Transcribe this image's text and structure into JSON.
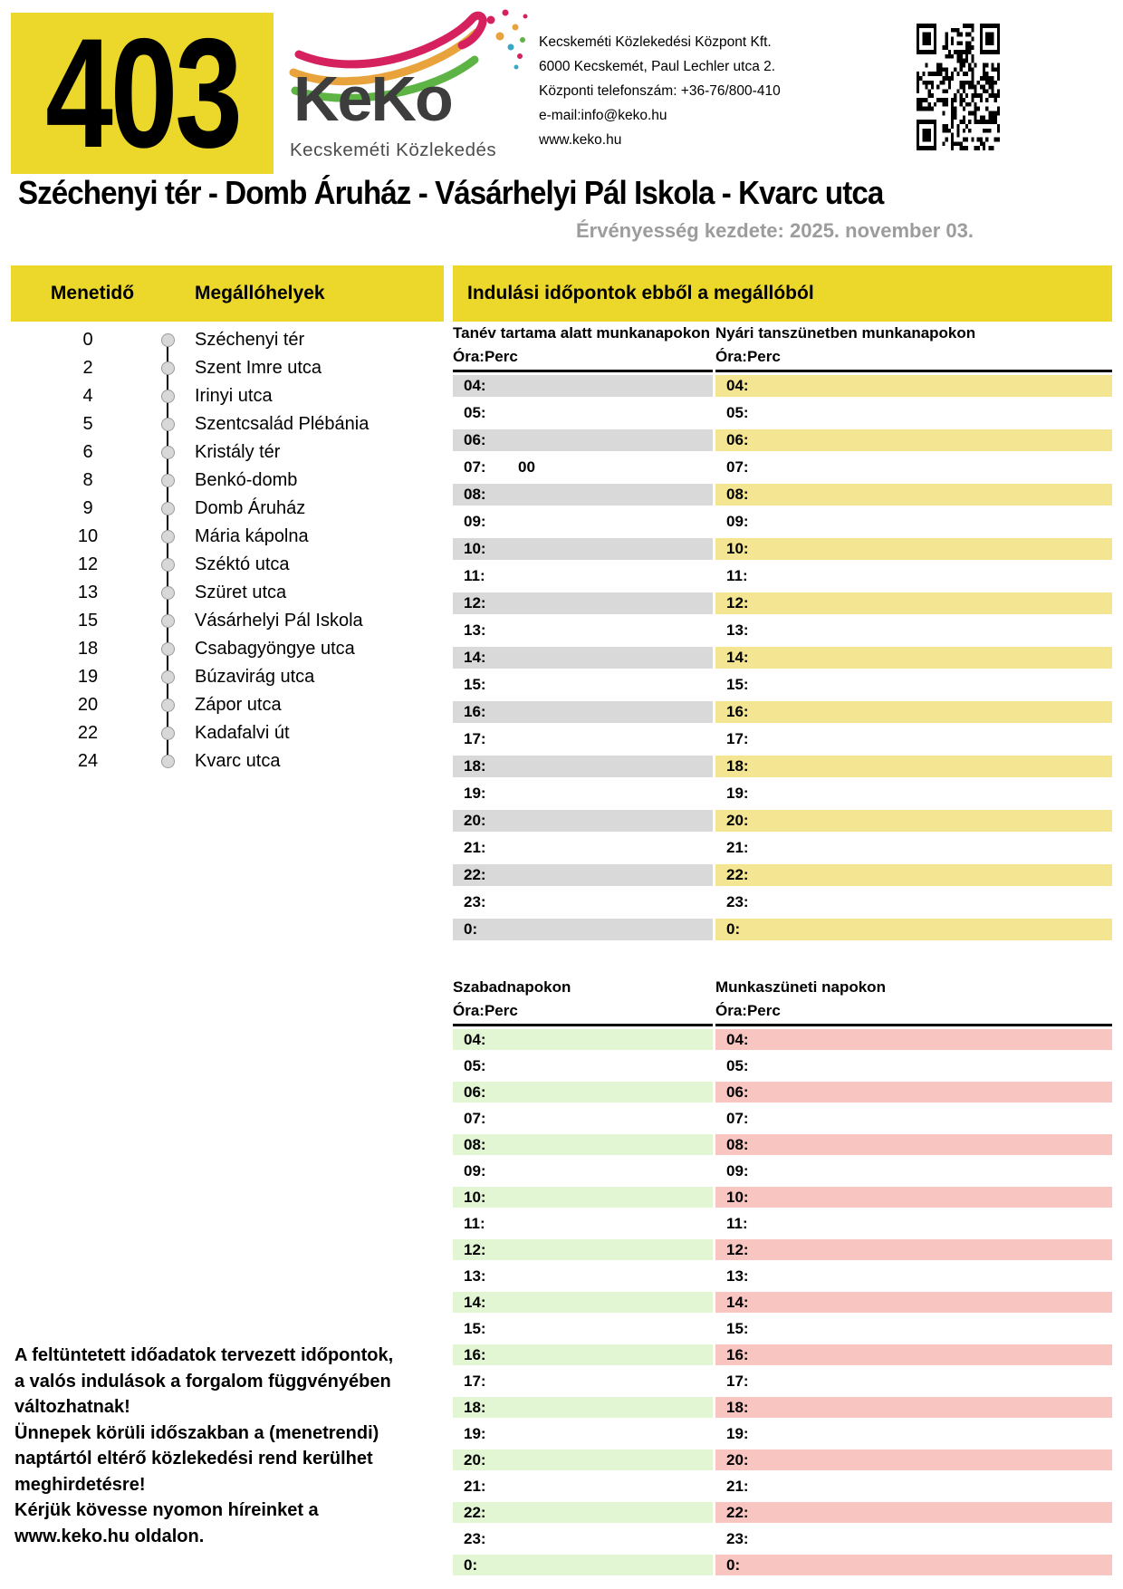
{
  "route": {
    "number": "403",
    "title": "Széchenyi tér - Domb Áruház - Vásárhelyi Pál Iskola - Kvarc utca",
    "validity": "Érvényesség kezdete: 2025. november 03."
  },
  "company": {
    "logo_text": "KeKo",
    "tagline": "Kecskeméti Közlekedés",
    "info_lines": [
      "Kecskeméti Közlekedési Központ Kft.",
      "6000 Kecskemét, Paul Lechler utca 2.",
      "Központi telefonszám: +36-76/800-410",
      "e-mail:info@keko.hu",
      "www.keko.hu"
    ]
  },
  "stops_panel": {
    "col1_label": "Menetidő",
    "col2_label": "Megállóhelyek",
    "stops": [
      {
        "time": "0",
        "name": "Széchenyi tér"
      },
      {
        "time": "2",
        "name": "Szent Imre utca"
      },
      {
        "time": "4",
        "name": "Irinyi utca"
      },
      {
        "time": "5",
        "name": "Szentcsalád Plébánia"
      },
      {
        "time": "6",
        "name": "Kristály tér"
      },
      {
        "time": "8",
        "name": "Benkó-domb"
      },
      {
        "time": "9",
        "name": "Domb Áruház"
      },
      {
        "time": "10",
        "name": "Mária kápolna"
      },
      {
        "time": "12",
        "name": "Széktó utca"
      },
      {
        "time": "13",
        "name": "Szüret utca"
      },
      {
        "time": "15",
        "name": "Vásárhelyi Pál Iskola"
      },
      {
        "time": "18",
        "name": "Csabagyöngye utca"
      },
      {
        "time": "19",
        "name": "Búzavirág utca"
      },
      {
        "time": "20",
        "name": "Zápor utca"
      },
      {
        "time": "22",
        "name": "Kadafalvi út"
      },
      {
        "time": "24",
        "name": "Kvarc utca"
      }
    ]
  },
  "departures": {
    "header": "Indulási időpontok ebből a megállóból",
    "time_format_label": "Óra:Perc",
    "hours": [
      "04:",
      "05:",
      "06:",
      "07:",
      "08:",
      "09:",
      "10:",
      "11:",
      "12:",
      "13:",
      "14:",
      "15:",
      "16:",
      "17:",
      "18:",
      "19:",
      "20:",
      "21:",
      "22:",
      "23:",
      "0:"
    ],
    "sections": [
      {
        "title": "Tanév tartama alatt munkanapokon",
        "row_color": "#d9d9d9",
        "minutes": {
          "07:": "00"
        }
      },
      {
        "title": "Nyári tanszünetben munkanapokon",
        "row_color": "#f3e591",
        "minutes": {}
      },
      {
        "title": "Szabadnapokon",
        "row_color": "#e3f6d4",
        "minutes": {}
      },
      {
        "title": "Munkaszüneti napokon",
        "row_color": "#f9c5c1",
        "minutes": {}
      }
    ]
  },
  "footer_note": {
    "lines": [
      "A feltüntetett időadatok tervezett időpontok,",
      "a valós indulások a forgalom függvényében",
      "változhatnak!",
      "Ünnepek körüli időszakban a (menetrendi)",
      "naptártól eltérő közlekedési rend kerülhet",
      "meghirdetésre!",
      "Kérjük kövesse nyomon híreinket a",
      "www.keko.hu oldalon."
    ]
  },
  "colors": {
    "brand_yellow": "#ecd72b",
    "row_gray": "#d9d9d9",
    "row_yellow": "#f3e591",
    "row_green": "#e3f6d4",
    "row_pink": "#f9c5c1",
    "validity_gray": "#9c9c9c",
    "logo_dark": "#3d3d3d",
    "logo_pink": "#d6215f",
    "logo_orange": "#e8a33d",
    "logo_green": "#5db344",
    "logo_teal": "#3ba7c4"
  }
}
